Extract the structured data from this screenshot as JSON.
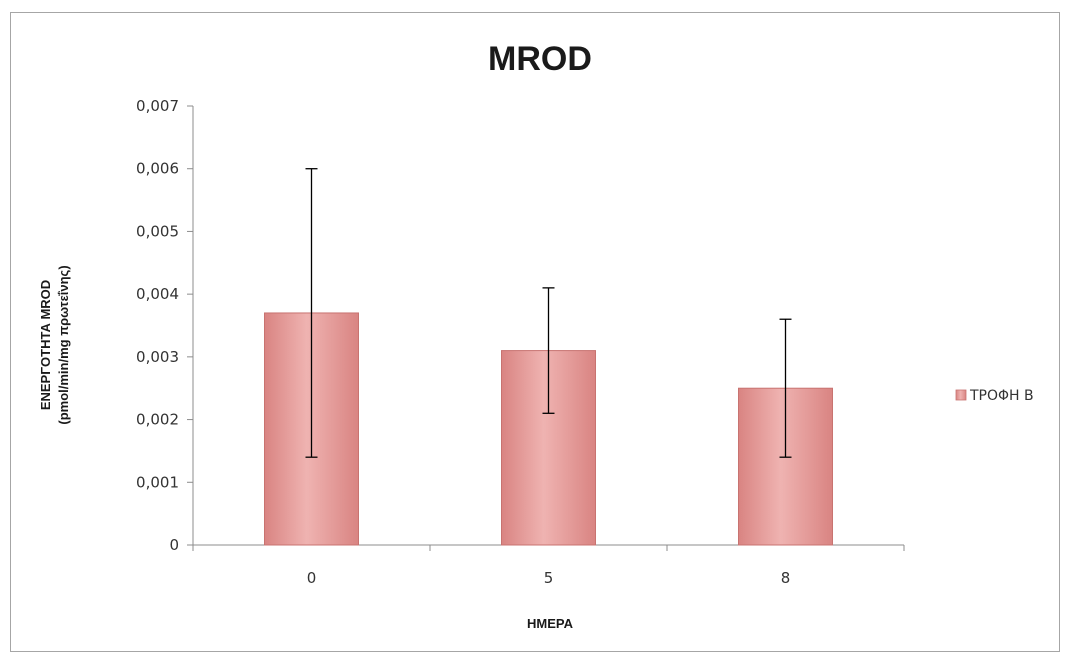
{
  "chart_data": {
    "type": "bar",
    "title": "MROD",
    "xlabel": "ΗΜΕΡΑ",
    "ylabel_line1": "ΕΝΕΡΓΟΤΗΤΑ MROD",
    "ylabel_line2": "(pmol/min/mg πρωτεΐνης)",
    "categories": [
      "0",
      "5",
      "8"
    ],
    "series": [
      {
        "name": "ΤΡΟΦΗ Β",
        "values": [
          0.0037,
          0.0031,
          0.0025
        ],
        "error_low": [
          0.0014,
          0.0021,
          0.0014
        ],
        "error_high": [
          0.006,
          0.0041,
          0.0036
        ]
      }
    ],
    "ylim": [
      0,
      0.007
    ],
    "yticks": [
      "0",
      "0,001",
      "0,002",
      "0,003",
      "0,004",
      "0,005",
      "0,006",
      "0,007"
    ],
    "grid": false,
    "legend_position": "right",
    "colors": {
      "bar_fill": "#e49a98",
      "bar_edge": "#c87370",
      "error_bar": "#000000",
      "axis": "#8c8c8c"
    }
  }
}
